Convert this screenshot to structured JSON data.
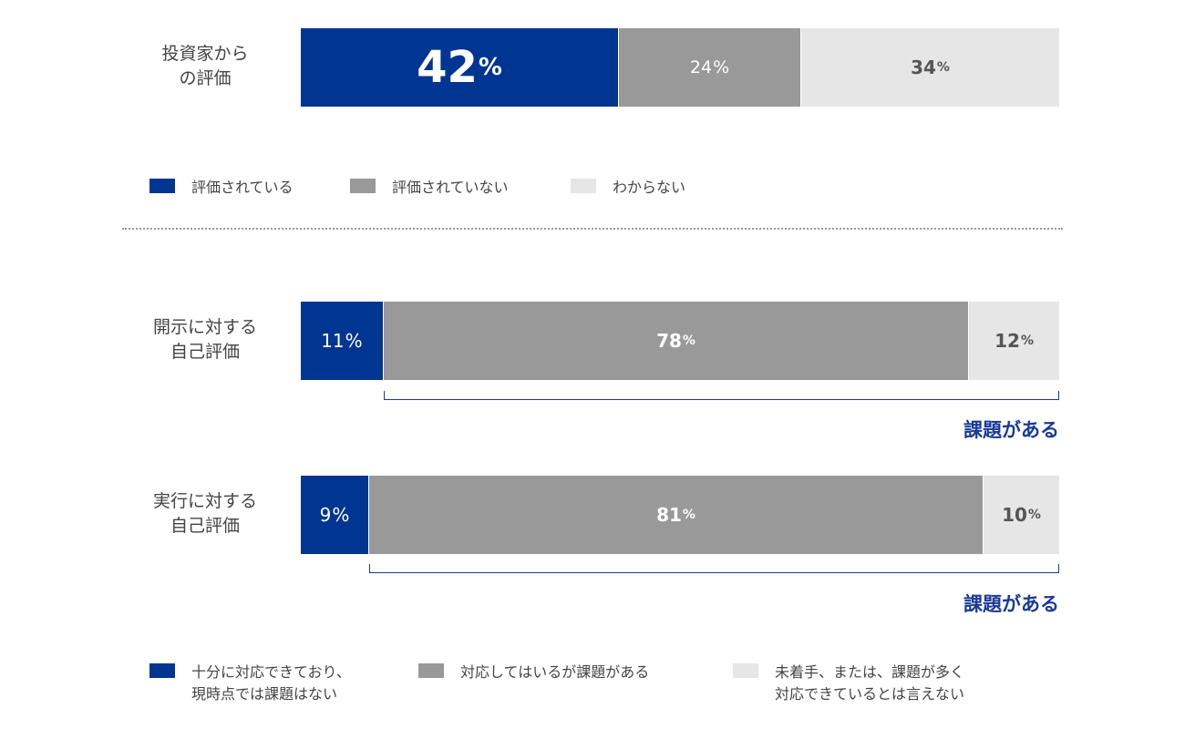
{
  "colors": {
    "evaluated": "#003591",
    "not_evaluated": "#999999",
    "unknown": "#e6e6e6",
    "text_dark": "#ffffff",
    "text_light": "#555555",
    "accent": "#1a3a9a"
  },
  "chart_data": [
    {
      "type": "bar",
      "orientation": "horizontal-stacked-100",
      "categories": [
        "投資家からの評価"
      ],
      "series": [
        {
          "name": "評価されている",
          "values": [
            42
          ]
        },
        {
          "name": "評価されていない",
          "values": [
            24
          ]
        },
        {
          "name": "わからない",
          "values": [
            34
          ]
        }
      ],
      "unit": "%"
    },
    {
      "type": "bar",
      "orientation": "horizontal-stacked-100",
      "categories": [
        "開示に対する自己評価",
        "実行に対する自己評価"
      ],
      "series": [
        {
          "name": "十分に対応できており、現時点では課題はない",
          "values": [
            11,
            9
          ]
        },
        {
          "name": "対応してはいるが課題がある",
          "values": [
            78,
            81
          ]
        },
        {
          "name": "未着手、または、課題が多く対応できているとは言えない",
          "values": [
            12,
            10
          ]
        }
      ],
      "unit": "%",
      "annotation": "課題がある"
    }
  ],
  "rows": {
    "investor": {
      "label": "投資家から\nの評価",
      "v1": "42",
      "v2": "24",
      "v3": "34"
    },
    "disclosure": {
      "label": "開示に対する\n自己評価",
      "v1": "11",
      "v2": "78",
      "v3": "12"
    },
    "execution": {
      "label": "実行に対する\n自己評価",
      "v1": "9",
      "v2": "81",
      "v3": "10"
    }
  },
  "unit": "%",
  "legend_top": [
    "評価されている",
    "評価されていない",
    "わからない"
  ],
  "legend_bottom": [
    "十分に対応できており、\n現時点では課題はない",
    "対応してはいるが課題がある",
    "未着手、または、課題が多く\n対応できているとは言えない"
  ],
  "bracket_label": "課題がある"
}
